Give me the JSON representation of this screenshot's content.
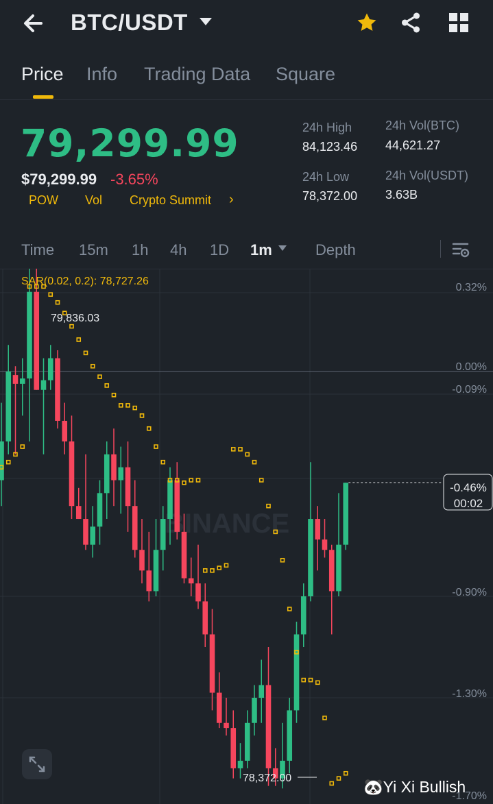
{
  "header": {
    "pair": "BTC/USDT",
    "icons": [
      "back-arrow-icon",
      "caret-down-icon",
      "star-icon",
      "share-icon",
      "grid-icon"
    ],
    "favorite_color": "#f0b90b"
  },
  "tabs": [
    {
      "label": "Price",
      "active": true
    },
    {
      "label": "Info",
      "active": false
    },
    {
      "label": "Trading Data",
      "active": false
    },
    {
      "label": "Square",
      "active": false
    }
  ],
  "price": {
    "last": "79,299.99",
    "usd": "$79,299.99",
    "change": "-3.65%",
    "tags": [
      "POW",
      "Vol",
      "Crypto Summit"
    ]
  },
  "stats": {
    "high_label": "24h High",
    "high_value": "84,123.46",
    "low_label": "24h Low",
    "low_value": "78,372.00",
    "vol_btc_label": "24h Vol(BTC)",
    "vol_btc_value": "44,621.27",
    "vol_usdt_label": "24h Vol(USDT)",
    "vol_usdt_value": "3.63B"
  },
  "intervals": [
    {
      "label": "Time",
      "active": false
    },
    {
      "label": "15m",
      "active": false
    },
    {
      "label": "1h",
      "active": false
    },
    {
      "label": "4h",
      "active": false
    },
    {
      "label": "1D",
      "active": false
    },
    {
      "label": "1m",
      "active": true
    },
    {
      "label": "Depth",
      "active": false
    }
  ],
  "chart": {
    "sar_label": "SAR(0.02, 0.2): 78,727.26",
    "watermark": "BINANCE",
    "high_marker": "79,836.03",
    "low_marker": "78,372.00",
    "axis_ticks": [
      "0.32%",
      "0.00%",
      "-0.09%",
      "-0.90%",
      "-1.30%",
      "-1.70%"
    ],
    "current_pct": "-0.46%",
    "countdown": "00:02",
    "colors": {
      "up": "#2ebd85",
      "down": "#f6465d",
      "sar": "#f0b90b"
    }
  },
  "chart_data": {
    "type": "candlestick",
    "interval": "1m",
    "axis_unit": "% change",
    "ylim": [
      -1.7,
      0.32
    ],
    "candles_pct": [
      {
        "o": -0.45,
        "h": -0.15,
        "l": -0.55,
        "c": -0.3
      },
      {
        "o": -0.3,
        "h": 0.1,
        "l": -0.35,
        "c": 0.0
      },
      {
        "o": -0.02,
        "h": 0.02,
        "l": -0.35,
        "c": -0.07
      },
      {
        "o": -0.07,
        "h": 0.05,
        "l": -0.2,
        "c": -0.04
      },
      {
        "o": -0.04,
        "h": 0.45,
        "l": -0.3,
        "c": 0.3
      },
      {
        "o": 0.3,
        "h": 0.5,
        "l": -0.1,
        "c": -0.1
      },
      {
        "o": -0.1,
        "h": 0.05,
        "l": -0.35,
        "c": -0.05
      },
      {
        "o": -0.05,
        "h": 0.1,
        "l": -0.1,
        "c": 0.05
      },
      {
        "o": 0.05,
        "h": 0.08,
        "l": -0.25,
        "c": -0.22
      },
      {
        "o": -0.22,
        "h": -0.15,
        "l": -0.35,
        "c": -0.3
      },
      {
        "o": -0.3,
        "h": -0.2,
        "l": -0.6,
        "c": -0.55
      },
      {
        "o": -0.55,
        "h": -0.48,
        "l": -0.6,
        "c": -0.6
      },
      {
        "o": -0.6,
        "h": -0.35,
        "l": -0.72,
        "c": -0.7
      },
      {
        "o": -0.7,
        "h": -0.55,
        "l": -0.75,
        "c": -0.63
      },
      {
        "o": -0.63,
        "h": -0.45,
        "l": -0.7,
        "c": -0.5
      },
      {
        "o": -0.5,
        "h": -0.3,
        "l": -0.6,
        "c": -0.35
      },
      {
        "o": -0.35,
        "h": -0.25,
        "l": -0.55,
        "c": -0.45
      },
      {
        "o": -0.45,
        "h": -0.32,
        "l": -0.58,
        "c": -0.4
      },
      {
        "o": -0.4,
        "h": -0.3,
        "l": -0.65,
        "c": -0.55
      },
      {
        "o": -0.55,
        "h": -0.45,
        "l": -0.75,
        "c": -0.72
      },
      {
        "o": -0.72,
        "h": -0.6,
        "l": -0.85,
        "c": -0.8
      },
      {
        "o": -0.8,
        "h": -0.65,
        "l": -0.92,
        "c": -0.88
      },
      {
        "o": -0.88,
        "h": -0.6,
        "l": -0.9,
        "c": -0.72
      },
      {
        "o": -0.72,
        "h": -0.55,
        "l": -0.8,
        "c": -0.6
      },
      {
        "o": -0.6,
        "h": -0.4,
        "l": -0.7,
        "c": -0.45
      },
      {
        "o": -0.45,
        "h": -0.38,
        "l": -0.68,
        "c": -0.65
      },
      {
        "o": -0.65,
        "h": -0.58,
        "l": -0.85,
        "c": -0.83
      },
      {
        "o": -0.83,
        "h": -0.75,
        "l": -0.9,
        "c": -0.85
      },
      {
        "o": -0.85,
        "h": -0.7,
        "l": -0.95,
        "c": -0.92
      },
      {
        "o": -0.92,
        "h": -0.85,
        "l": -1.1,
        "c": -1.05
      },
      {
        "o": -1.05,
        "h": -0.95,
        "l": -1.35,
        "c": -1.28
      },
      {
        "o": -1.28,
        "h": -1.2,
        "l": -1.42,
        "c": -1.4
      },
      {
        "o": -1.4,
        "h": -1.3,
        "l": -1.45,
        "c": -1.42
      },
      {
        "o": -1.42,
        "h": -1.35,
        "l": -1.62,
        "c": -1.58
      },
      {
        "o": -1.58,
        "h": -1.48,
        "l": -1.62,
        "c": -1.55
      },
      {
        "o": -1.55,
        "h": -1.35,
        "l": -1.58,
        "c": -1.4
      },
      {
        "o": -1.4,
        "h": -1.25,
        "l": -1.45,
        "c": -1.3
      },
      {
        "o": -1.3,
        "h": -1.15,
        "l": -1.4,
        "c": -1.25
      },
      {
        "o": -1.25,
        "h": -1.1,
        "l": -1.65,
        "c": -1.58
      },
      {
        "o": -1.58,
        "h": -1.5,
        "l": -1.65,
        "c": -1.62
      },
      {
        "o": -1.62,
        "h": -1.4,
        "l": -1.66,
        "c": -1.55
      },
      {
        "o": -1.55,
        "h": -1.3,
        "l": -1.6,
        "c": -1.35
      },
      {
        "o": -1.35,
        "h": -1.0,
        "l": -1.4,
        "c": -1.05
      },
      {
        "o": -1.05,
        "h": -0.85,
        "l": -1.1,
        "c": -0.9
      },
      {
        "o": -0.9,
        "h": -0.38,
        "l": -0.92,
        "c": -0.6
      },
      {
        "o": -0.6,
        "h": -0.55,
        "l": -0.8,
        "c": -0.68
      },
      {
        "o": -0.68,
        "h": -0.6,
        "l": -0.75,
        "c": -0.72
      },
      {
        "o": -0.72,
        "h": -0.7,
        "l": -1.05,
        "c": -0.88
      },
      {
        "o": -0.88,
        "h": -0.5,
        "l": -0.9,
        "c": -0.7
      },
      {
        "o": -0.7,
        "h": -0.46,
        "l": -0.72,
        "c": -0.46
      }
    ],
    "sar_pct": [
      -0.4,
      -0.38,
      -0.35,
      -0.32,
      0.32,
      0.32,
      0.32,
      0.29,
      0.26,
      0.22,
      0.17,
      0.12,
      0.07,
      0.02,
      -0.03,
      -0.08,
      -0.12,
      -0.16,
      -0.16,
      -0.17,
      -0.2,
      -0.25,
      -0.32,
      -0.38,
      -0.45,
      -0.45,
      -0.46,
      -0.45,
      -0.45,
      -0.8,
      -0.8,
      -0.79,
      -0.78,
      -0.33,
      -0.33,
      -0.35,
      -0.38,
      -0.45,
      -0.55,
      -0.65,
      -0.76,
      -0.95,
      -1.12,
      -1.23,
      -1.23,
      -1.24,
      -1.38,
      -1.64,
      -1.62,
      -1.6
    ]
  },
  "watermark_user": "🐼Yi Xi Bullish"
}
